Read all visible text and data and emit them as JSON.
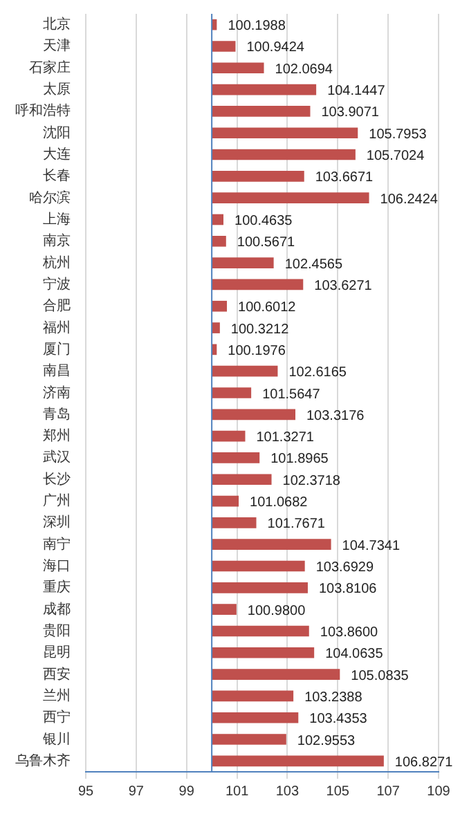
{
  "chart_data": {
    "type": "bar",
    "orientation": "horizontal",
    "categories": [
      "北京",
      "天津",
      "石家庄",
      "太原",
      "呼和浩特",
      "沈阳",
      "大连",
      "长春",
      "哈尔滨",
      "上海",
      "南京",
      "杭州",
      "宁波",
      "合肥",
      "福州",
      "厦门",
      "南昌",
      "济南",
      "青岛",
      "郑州",
      "武汉",
      "长沙",
      "广州",
      "深圳",
      "南宁",
      "海口",
      "重庆",
      "成都",
      "贵阳",
      "昆明",
      "西安",
      "兰州",
      "西宁",
      "银川",
      "乌鲁木齐"
    ],
    "base": [
      100,
      100,
      100,
      100,
      100,
      100,
      100,
      100,
      100,
      100,
      100,
      100,
      100,
      100,
      100,
      100,
      100,
      100,
      100,
      100,
      100,
      100,
      100,
      100,
      100,
      100,
      100,
      100,
      100,
      100,
      100,
      100,
      100,
      100,
      100
    ],
    "values": [
      0.1988,
      0.9424,
      2.0694,
      4.1447,
      3.9071,
      5.7953,
      5.7024,
      3.6671,
      6.2424,
      0.4635,
      0.5671,
      2.4565,
      3.6271,
      0.6012,
      0.3212,
      0.1976,
      2.6165,
      1.5647,
      3.3176,
      1.3271,
      1.8965,
      2.3718,
      1.0682,
      1.7671,
      4.7341,
      3.6929,
      3.8106,
      0.98,
      3.86,
      4.0635,
      5.0835,
      3.2388,
      3.4353,
      2.9553,
      6.8271
    ],
    "value_labels": [
      "100.1988",
      "100.9424",
      "102.0694",
      "104.1447",
      "103.9071",
      "105.7953",
      "105.7024",
      "103.6671",
      "106.2424",
      "100.4635",
      "100.5671",
      "102.4565",
      "103.6271",
      "100.6012",
      "100.3212",
      "100.1976",
      "102.6165",
      "101.5647",
      "103.3176",
      "101.3271",
      "101.8965",
      "102.3718",
      "101.0682",
      "101.7671",
      "104.7341",
      "103.6929",
      "103.8106",
      "100.9800",
      "103.8600",
      "104.0635",
      "105.0835",
      "103.2388",
      "103.4353",
      "102.9553",
      "106.8271"
    ],
    "color": "#c0504d",
    "xlim": [
      95,
      109
    ],
    "xticks": [
      95,
      97,
      99,
      101,
      103,
      105,
      107,
      109
    ],
    "ref_lines": [
      {
        "axis": "x",
        "value": 100,
        "color": "#4f81bd"
      }
    ],
    "grid": "x",
    "legend": false
  }
}
